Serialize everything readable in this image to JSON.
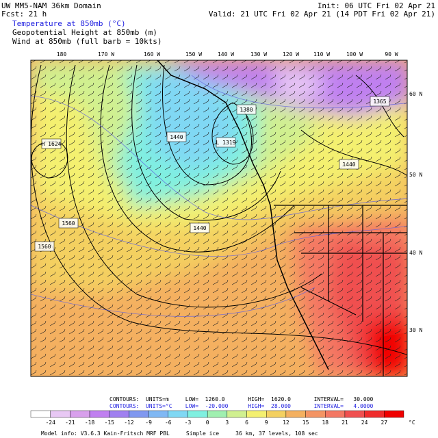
{
  "header": {
    "title": "UW MM5-NAM 36km Domain",
    "forecast": "Fcst:   21 h",
    "init": "Init: 06 UTC Fri 02 Apr 21",
    "valid": "Valid: 21 UTC Fri 02 Apr 21 (14 PDT Fri 02 Apr 21)",
    "fields": [
      "Temperature at 850mb (°C)",
      "Geopotential Height at 850mb (m)",
      "Wind at 850mb (full barb = 10kts)"
    ]
  },
  "map": {
    "longitudes": [
      "180",
      "170 W",
      "160 W",
      "150 W",
      "140 W",
      "130 W",
      "120 W",
      "110 W",
      "100 W",
      "90 W"
    ],
    "latitudes": [
      "60 N",
      "50 N",
      "40 N",
      "30 N"
    ],
    "contour_labels": [
      "H\n1624",
      "L\n1319",
      "1440",
      "1560",
      "1560",
      "1440",
      "1440",
      "1380",
      "1365"
    ]
  },
  "contours": [
    "CONTOURS:  UNITS=m     LOW=  1260.0       HIGH=  1620.0       INTERVAL=   30.000",
    "CONTOURS:  UNITS=°C    LOW=  -20.000      HIGH=  28.000       INTERVAL=   4.0000"
  ],
  "colorbar": {
    "labels": [
      "-24",
      "-21",
      "-18",
      "-15",
      "-12",
      "-9",
      "-6",
      "-3",
      "0",
      "3",
      "6",
      "9",
      "12",
      "15",
      "18",
      "21",
      "24",
      "27"
    ],
    "unit": "°C",
    "colors": [
      "#ffffff",
      "#e8c8f4",
      "#d8a0ec",
      "#c080f0",
      "#a080f0",
      "#8098f0",
      "#80b8f4",
      "#80d8f4",
      "#80f0e0",
      "#a0f0b0",
      "#d0f090",
      "#f4f070",
      "#f4d060",
      "#f4b060",
      "#f49464",
      "#f47864",
      "#f05050",
      "#f02c2c",
      "#f00000"
    ]
  },
  "footer": "Model info: V3.6.3 Kain-Fritsch MRF PBL     Simple ice     36 km, 37 levels, 108 sec"
}
